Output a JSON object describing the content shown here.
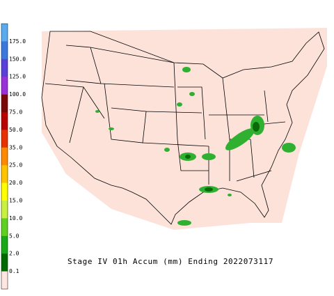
{
  "legend": {
    "labels": [
      "175.0",
      "150.0",
      "125.0",
      "100.0",
      "75.0",
      "50.0",
      "35.0",
      "25.0",
      "20.0",
      "15.0",
      "10.0",
      "5.0",
      "2.0",
      "0.1"
    ],
    "colors": [
      "#5aaaf0",
      "#3a78dc",
      "#5a40d8",
      "#9a30d8",
      "#7a0808",
      "#b80000",
      "#e83000",
      "#ff8a00",
      "#ffc400",
      "#ffff00",
      "#c8f040",
      "#60d020",
      "#18a818",
      "#006a00",
      "#ffe6e0"
    ]
  },
  "caption": "Stage IV 01h Accum (mm) Ending 2022073117"
}
